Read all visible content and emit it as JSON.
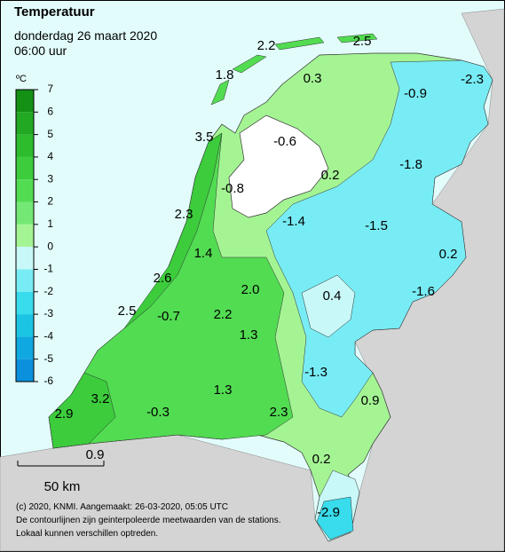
{
  "header": {
    "title": "Temperatuur",
    "date": "donderdag 26 maart 2020",
    "time": "06:00 uur"
  },
  "legend": {
    "unit": "ºC",
    "ticks": [
      7,
      6,
      5,
      4,
      3,
      2,
      1,
      0,
      -1,
      -2,
      -3,
      -4,
      -5,
      -6
    ],
    "colors": [
      "#149014",
      "#22a822",
      "#2cbc2c",
      "#3ccc3c",
      "#52dc52",
      "#74e874",
      "#a4f494",
      "#c8f8f8",
      "#78ecf4",
      "#38dcec",
      "#1cc4e4",
      "#10a8e0",
      "#0a90dc"
    ]
  },
  "stations": [
    "2.2",
    "2.5",
    "-2.3",
    "1.8",
    "0.3",
    "-0.9",
    "3.5",
    "-0.6",
    "-1.8",
    "0.2",
    "-0.8",
    "2.3",
    "-1.4",
    "-1.5",
    "0.2",
    "1.4",
    "2.6",
    "2.0",
    "-1.6",
    "0.4",
    "2.5",
    "-0.7",
    "2.2",
    "1.3",
    "-1.3",
    "3.2",
    "1.3",
    "0.9",
    "2.9",
    "-0.3",
    "2.3",
    "0.9",
    "0.2",
    "-2.9"
  ],
  "scale": "50 km",
  "footer": [
    "(c) 2020, KNMI. Aangemaakt: 26-03-2020, 05:05 UTC",
    "De contourlijnen zijn geinterpoleerde meetwaarden van de stations.",
    "Lokaal kunnen verschillen optreden."
  ]
}
